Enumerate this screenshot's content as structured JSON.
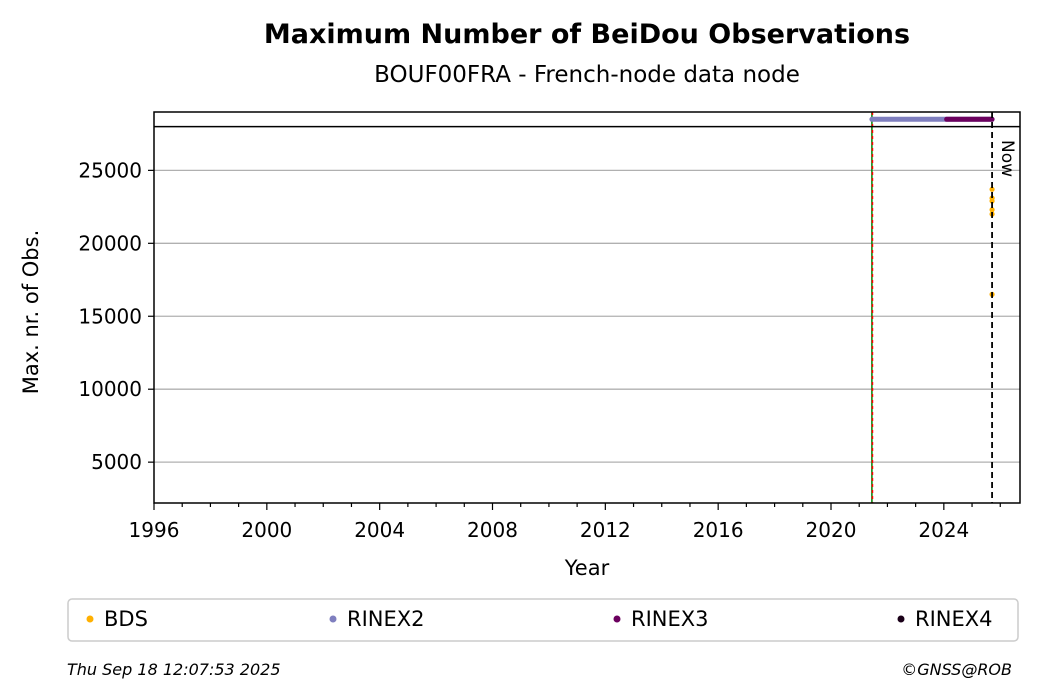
{
  "chart_data": {
    "type": "scatter",
    "title": "Maximum Number of BeiDou Observations",
    "subtitle": "BOUF00FRA - French-node data node",
    "xlabel": "Year",
    "ylabel": "Max. nr. of Obs.",
    "xlim": [
      1996,
      2026.7
    ],
    "ylim": [
      2200,
      29000
    ],
    "x_ticks": [
      1996,
      2000,
      2004,
      2008,
      2012,
      2016,
      2020,
      2024
    ],
    "y_ticks": [
      5000,
      10000,
      15000,
      20000,
      25000
    ],
    "grid": "horizontal",
    "legend_position": "bottom",
    "top_band_y": 28000,
    "now_label": "Now",
    "now_x": 2025.71,
    "event_lines": [
      {
        "x": 2021.45,
        "color": "#008000"
      },
      {
        "x": 2021.47,
        "color": "#ff0000"
      }
    ],
    "series": [
      {
        "name": "BDS",
        "color": "#ffb000",
        "points": [
          {
            "x": 2025.71,
            "y": 16500
          },
          {
            "x": 2025.71,
            "y": 22000
          },
          {
            "x": 2025.71,
            "y": 22300
          },
          {
            "x": 2025.71,
            "y": 22900
          },
          {
            "x": 2025.71,
            "y": 23100
          },
          {
            "x": 2025.71,
            "y": 23700
          }
        ]
      },
      {
        "name": "RINEX2",
        "color": "#7f7fbf",
        "span": {
          "x_start": 2021.45,
          "x_end": 2025.71,
          "y": 28500
        }
      },
      {
        "name": "RINEX3",
        "color": "#6b005e",
        "span": {
          "x_start": 2024.1,
          "x_end": 2025.71,
          "y": 28500
        }
      },
      {
        "name": "RINEX4",
        "color": "#1a0018",
        "span": null
      }
    ]
  },
  "footer": {
    "timestamp": "Thu Sep 18 12:07:53 2025",
    "credit": "©GNSS@ROB"
  }
}
